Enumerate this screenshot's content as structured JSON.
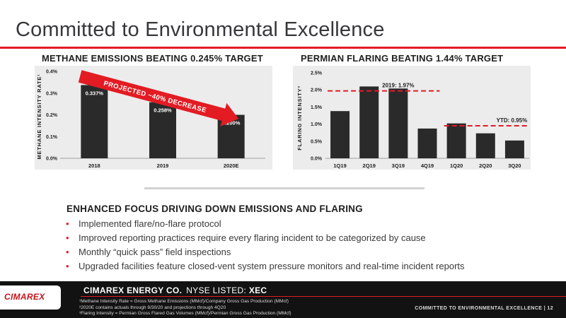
{
  "slide": {
    "title": "Committed to Environmental Excellence",
    "footer_label": "COMMITTED TO ENVIRONMENTAL EXCELLENCE | 12"
  },
  "colors": {
    "accent": "#e31b23",
    "bar": "#2a2a2a",
    "panel": "#ececec",
    "footer": "#121212"
  },
  "charts": [
    {
      "heading": "METHANE EMISSIONS BEATING 0.245% TARGET",
      "ylabel": "METHANE INTENSITY RATE¹",
      "arrow_label": "PROJECTED ~40% DECREASE"
    },
    {
      "heading": "PERMIAN FLARING BEATING 1.44% TARGET",
      "ylabel": "FLARING INTENSITY³",
      "annotations": [
        "2019: 1.97%",
        "YTD: 0.95%"
      ]
    }
  ],
  "chart_data": [
    {
      "type": "bar",
      "title": "METHANE EMISSIONS BEATING 0.245% TARGET",
      "ylabel": "METHANE INTENSITY RATE¹",
      "categories": [
        "2018",
        "2019",
        "2020E"
      ],
      "values": [
        0.337,
        0.258,
        0.2
      ],
      "data_labels": [
        "0.337%",
        "0.258%",
        "0.200%"
      ],
      "yticks": [
        "0.0%",
        "0.1%",
        "0.2%",
        "0.3%",
        "0.4%"
      ],
      "ylim": [
        0,
        0.4
      ],
      "grid": false,
      "annotation": "PROJECTED ~40% DECREASE"
    },
    {
      "type": "bar",
      "title": "PERMIAN FLARING BEATING 1.44% TARGET",
      "ylabel": "FLARING INTENSITY³",
      "categories": [
        "1Q19",
        "2Q19",
        "3Q19",
        "4Q19",
        "1Q20",
        "2Q20",
        "3Q20"
      ],
      "values": [
        1.38,
        2.1,
        2.04,
        0.87,
        1.02,
        0.73,
        0.52
      ],
      "yticks": [
        "0.0%",
        "0.5%",
        "1.0%",
        "1.5%",
        "2.0%",
        "2.5%"
      ],
      "ylim": [
        0,
        2.5
      ],
      "grid": false,
      "reference_lines": [
        {
          "label": "2019: 1.97%",
          "value": 1.97,
          "from": "1Q19",
          "to": "4Q19"
        },
        {
          "label": "YTD: 0.95%",
          "value": 0.95,
          "from": "1Q20",
          "to": "3Q20"
        }
      ]
    }
  ],
  "focus": {
    "heading": "ENHANCED FOCUS DRIVING DOWN EMISSIONS AND FLARING",
    "bullets": [
      "Implemented flare/no-flare protocol",
      "Improved reporting practices require every flaring incident to be categorized by cause",
      "Monthly “quick pass” field inspections",
      "Upgraded facilities feature closed-vent system pressure monitors and real-time incident reports"
    ]
  },
  "footer": {
    "logo_text": "CIMAREX",
    "company": "CIMAREX ENERGY CO.",
    "nyse": "NYSE LISTED:",
    "ticker": "XEC",
    "footnotes": [
      "¹Methane Intensity Rate = Gross Methane Emissions (MMcf)/Company Gross Gas Production (MMcf)",
      "²2020E contains actuals through 9/30/20 and projections through 4Q20",
      "³Flaring Intensity = Permian Gross Flared Gas Volumes (MMcf)/Permian Gross Gas Production (MMcf)"
    ]
  }
}
